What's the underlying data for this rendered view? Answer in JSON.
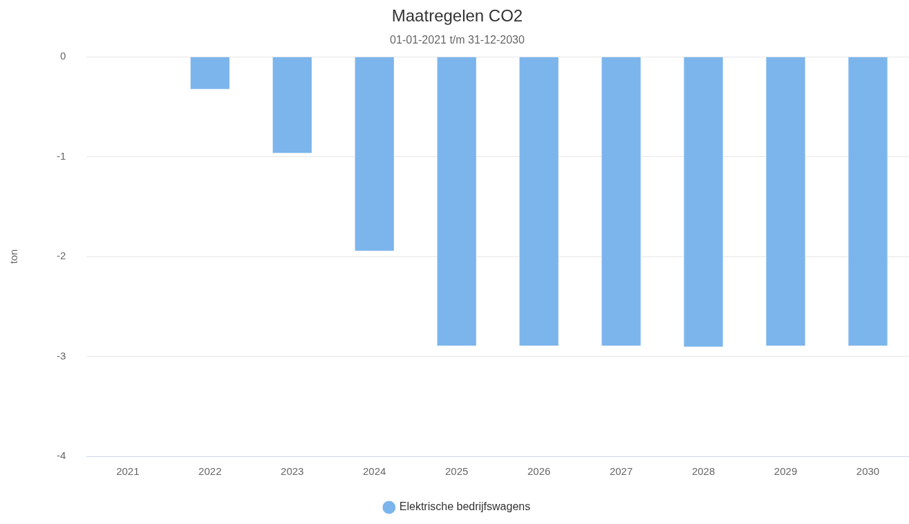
{
  "chart_data": {
    "type": "bar",
    "title": "Maatregelen CO2",
    "subtitle": "01-01-2021 t/m 31-12-2030",
    "ylabel": "ton",
    "categories": [
      "2021",
      "2022",
      "2023",
      "2024",
      "2025",
      "2026",
      "2027",
      "2028",
      "2029",
      "2030"
    ],
    "series": [
      {
        "name": "Elektrische bedrijfswagens",
        "color": "#7cb5ec",
        "values": [
          0,
          -0.33,
          -0.97,
          -1.95,
          -2.9,
          -2.9,
          -2.9,
          -2.91,
          -2.9,
          -2.9
        ]
      }
    ],
    "ylim": [
      -4,
      0
    ],
    "yticks": [
      -4,
      -3,
      -2,
      -1,
      0
    ],
    "grid": "y",
    "legend": "bottom"
  }
}
